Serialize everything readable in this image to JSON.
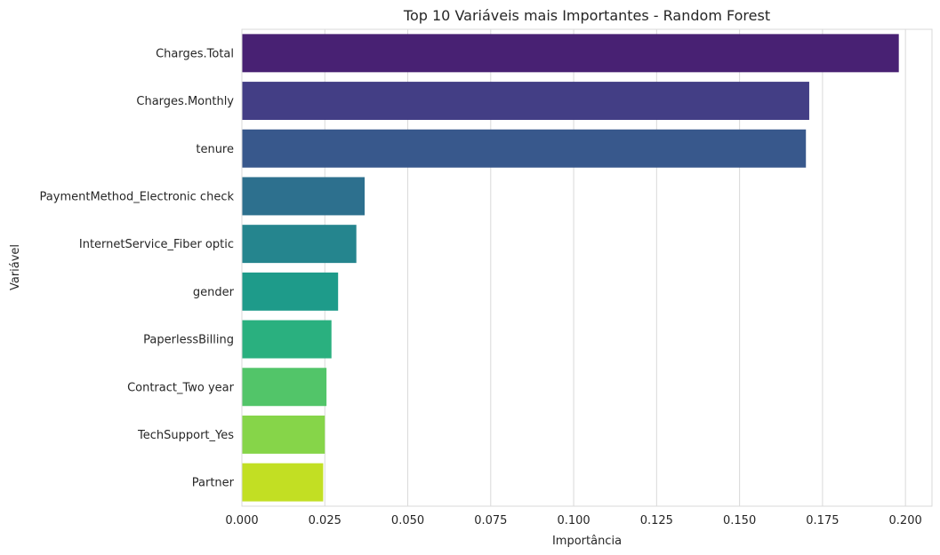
{
  "chart_data": {
    "type": "bar",
    "orientation": "horizontal",
    "title": "Top 10 Variáveis mais Importantes - Random Forest",
    "xlabel": "Importância",
    "ylabel": "Variável",
    "xlim": [
      0,
      0.208
    ],
    "xticks": [
      0.0,
      0.025,
      0.05,
      0.075,
      0.1,
      0.125,
      0.15,
      0.175,
      0.2
    ],
    "xtick_labels": [
      "0.000",
      "0.025",
      "0.050",
      "0.075",
      "0.100",
      "0.125",
      "0.150",
      "0.175",
      "0.200"
    ],
    "grid": true,
    "categories": [
      "Charges.Total",
      "Charges.Monthly",
      "tenure",
      "PaymentMethod_Electronic check",
      "InternetService_Fiber optic",
      "gender",
      "PaperlessBilling",
      "Contract_Two year",
      "TechSupport_Yes",
      "Partner"
    ],
    "values": [
      0.198,
      0.171,
      0.17,
      0.037,
      0.0345,
      0.029,
      0.027,
      0.0255,
      0.025,
      0.0245
    ],
    "colors": [
      "#482173",
      "#433e85",
      "#38588c",
      "#2d708e",
      "#25858e",
      "#1e9b8a",
      "#2ab07f",
      "#52c569",
      "#86d549",
      "#c2df23"
    ]
  }
}
